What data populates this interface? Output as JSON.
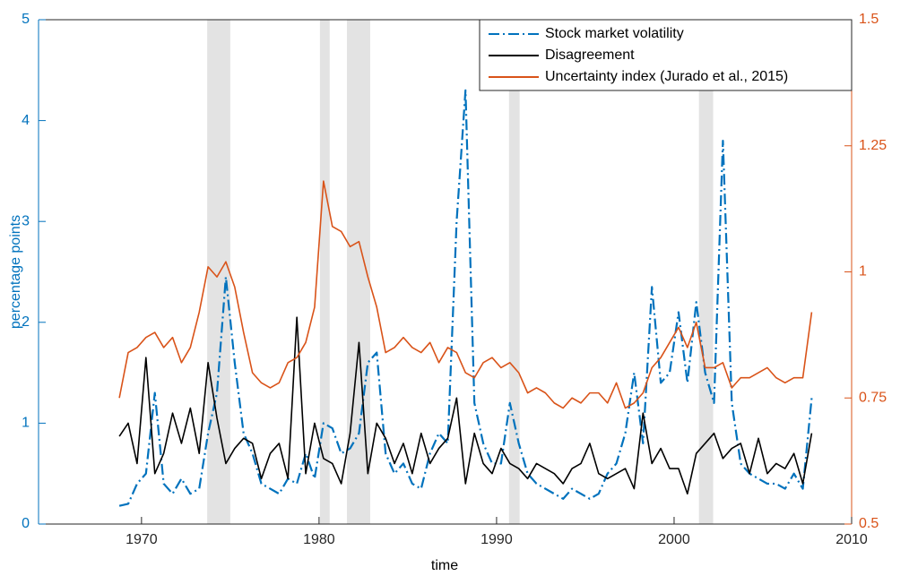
{
  "chart_data": {
    "type": "line",
    "xlabel": "time",
    "ylabel": "percentage points",
    "xlim": [
      1964.2,
      2010
    ],
    "xticks": [
      1970,
      1980,
      1990,
      2000,
      2010
    ],
    "ylim": [
      0,
      5
    ],
    "yticks": [
      0,
      1,
      2,
      3,
      4,
      5
    ],
    "y2lim": [
      0.5,
      1.5
    ],
    "y2ticks": [
      0.5,
      0.75,
      1,
      1.25,
      1.5
    ],
    "y_color": "#0072bd",
    "y2_color": "#d95319",
    "legend": "upper right",
    "shaded_regions": [
      [
        1973.7,
        1975.0
      ],
      [
        1980.05,
        1980.6
      ],
      [
        1981.57,
        1982.88
      ],
      [
        1990.7,
        1991.3
      ],
      [
        2001.4,
        2002.2
      ]
    ],
    "shade_color": "#e3e3e3",
    "x": [
      1968.75,
      1969.25,
      1969.75,
      1970.25,
      1970.75,
      1971.25,
      1971.75,
      1972.25,
      1972.75,
      1973.25,
      1973.75,
      1974.25,
      1974.75,
      1975.25,
      1975.75,
      1976.25,
      1976.75,
      1977.25,
      1977.75,
      1978.25,
      1978.75,
      1979.25,
      1979.75,
      1980.25,
      1980.75,
      1981.25,
      1981.75,
      1982.25,
      1982.75,
      1983.25,
      1983.75,
      1984.25,
      1984.75,
      1985.25,
      1985.75,
      1986.25,
      1986.75,
      1987.25,
      1987.75,
      1988.25,
      1988.75,
      1989.25,
      1989.75,
      1990.25,
      1990.75,
      1991.25,
      1991.75,
      1992.25,
      1992.75,
      1993.25,
      1993.75,
      1994.25,
      1994.75,
      1995.25,
      1995.75,
      1996.25,
      1996.75,
      1997.25,
      1997.75,
      1998.25,
      1998.75,
      1999.25,
      1999.75,
      2000.25,
      2000.75,
      2001.25,
      2001.75,
      2002.25,
      2002.75,
      2003.25,
      2003.75,
      2004.25,
      2004.75,
      2005.25,
      2005.75,
      2006.25,
      2006.75,
      2007.25,
      2007.75
    ],
    "series": [
      {
        "name": "Stock market volatility",
        "color": "#0072bd",
        "linestyle": "dashdot",
        "axis": "y",
        "values": [
          0.18,
          0.2,
          0.4,
          0.5,
          1.3,
          0.4,
          0.3,
          0.45,
          0.3,
          0.35,
          0.9,
          1.3,
          2.45,
          1.6,
          0.9,
          0.7,
          0.4,
          0.35,
          0.3,
          0.45,
          0.4,
          0.7,
          0.45,
          1.0,
          0.95,
          0.7,
          0.75,
          0.9,
          1.6,
          1.7,
          0.7,
          0.5,
          0.6,
          0.4,
          0.35,
          0.7,
          0.9,
          0.8,
          3.0,
          4.3,
          1.2,
          0.8,
          0.6,
          0.6,
          1.2,
          0.8,
          0.5,
          0.4,
          0.35,
          0.3,
          0.25,
          0.35,
          0.3,
          0.25,
          0.3,
          0.5,
          0.6,
          0.9,
          1.5,
          0.8,
          2.35,
          1.4,
          1.5,
          2.1,
          1.4,
          2.2,
          1.5,
          1.2,
          3.8,
          1.2,
          0.6,
          0.5,
          0.45,
          0.4,
          0.4,
          0.35,
          0.5,
          0.35,
          1.25
        ]
      },
      {
        "name": "Disagreement",
        "color": "#000000",
        "linestyle": "solid",
        "axis": "y",
        "values": [
          0.87,
          1.0,
          0.6,
          1.65,
          0.5,
          0.7,
          1.1,
          0.8,
          1.15,
          0.7,
          1.6,
          1.05,
          0.6,
          0.75,
          0.85,
          0.8,
          0.45,
          0.7,
          0.8,
          0.45,
          2.05,
          0.5,
          1.0,
          0.65,
          0.6,
          0.4,
          0.9,
          1.8,
          0.5,
          1.0,
          0.85,
          0.6,
          0.8,
          0.5,
          0.9,
          0.6,
          0.75,
          0.85,
          1.25,
          0.4,
          0.9,
          0.6,
          0.5,
          0.75,
          0.6,
          0.55,
          0.45,
          0.6,
          0.55,
          0.5,
          0.4,
          0.55,
          0.6,
          0.8,
          0.5,
          0.45,
          0.5,
          0.55,
          0.35,
          1.1,
          0.6,
          0.75,
          0.55,
          0.55,
          0.3,
          0.7,
          0.8,
          0.9,
          0.65,
          0.75,
          0.8,
          0.5,
          0.85,
          0.5,
          0.6,
          0.55,
          0.7,
          0.4,
          0.9
        ]
      },
      {
        "name": "Uncertainty index (Jurado et al., 2015)",
        "color": "#d95319",
        "linestyle": "solid",
        "axis": "y2",
        "values": [
          0.75,
          0.84,
          0.85,
          0.87,
          0.88,
          0.85,
          0.87,
          0.82,
          0.85,
          0.92,
          1.01,
          0.99,
          1.02,
          0.97,
          0.88,
          0.8,
          0.78,
          0.77,
          0.78,
          0.82,
          0.83,
          0.86,
          0.93,
          1.18,
          1.09,
          1.08,
          1.05,
          1.06,
          0.99,
          0.93,
          0.84,
          0.85,
          0.87,
          0.85,
          0.84,
          0.86,
          0.82,
          0.85,
          0.84,
          0.8,
          0.79,
          0.82,
          0.83,
          0.81,
          0.82,
          0.8,
          0.76,
          0.77,
          0.76,
          0.74,
          0.73,
          0.75,
          0.74,
          0.76,
          0.76,
          0.74,
          0.78,
          0.73,
          0.74,
          0.76,
          0.81,
          0.83,
          0.86,
          0.89,
          0.85,
          0.9,
          0.81,
          0.81,
          0.82,
          0.77,
          0.79,
          0.79,
          0.8,
          0.81,
          0.79,
          0.78,
          0.79,
          0.79,
          0.92
        ]
      }
    ]
  }
}
